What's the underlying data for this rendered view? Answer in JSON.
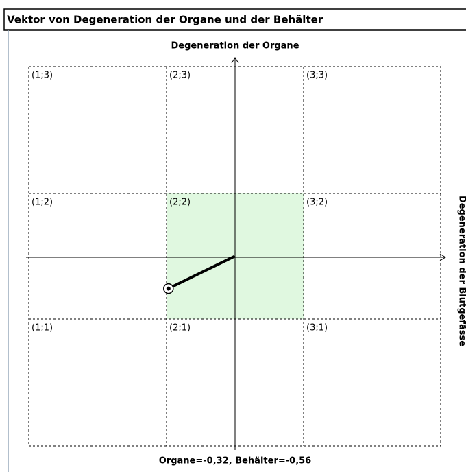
{
  "chart_data": {
    "type": "vector",
    "title": "Vektor von Degeneration der Organe und der Behälter",
    "y_label": "Degeneration der Organe",
    "x_label": "Degeneration der Blutgefässe",
    "caption": "Organe=-0,32, Behälter=-0,56",
    "cells": [
      "(1;3)",
      "(2;3)",
      "(3;3)",
      "(1;2)",
      "(2;2)",
      "(3;2)",
      "(1;1)",
      "(2;1)",
      "(3;1)"
    ],
    "highlight": "(2;2)",
    "highlight_color": "#e0f8e0",
    "point": {
      "x": -0.56,
      "y": -0.32
    },
    "color": "#000000",
    "xlim": [
      -1.74,
      1.74
    ],
    "ylim": [
      -1.88,
      1.88
    ]
  }
}
